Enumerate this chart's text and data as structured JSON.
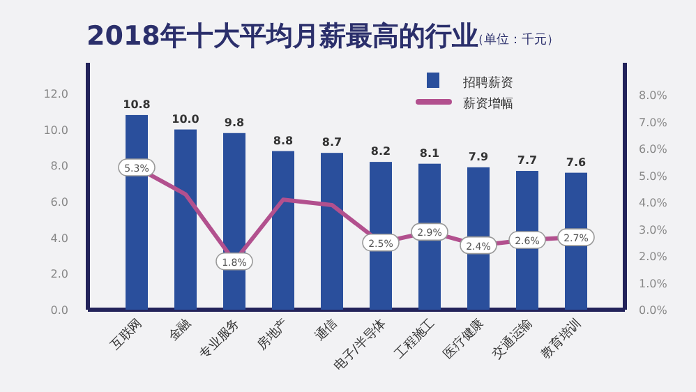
{
  "chart_data": {
    "type": "bar",
    "title": "2018年十大平均月薪最高的行业",
    "subtitle": "（单位：千元）",
    "categories": [
      "互联网",
      "金融",
      "专业服务",
      "房地产",
      "通信",
      "电子/半导体",
      "工程施工",
      "医疗健康",
      "交通运输",
      "教育培训"
    ],
    "series": [
      {
        "name": "招聘薪资",
        "color": "#2a4f9c",
        "values": [
          10.8,
          10.0,
          9.8,
          8.8,
          8.7,
          8.2,
          8.1,
          7.9,
          7.7,
          7.6
        ],
        "value_labels": [
          "10.8",
          "10.0",
          "9.8",
          "8.8",
          "8.7",
          "8.2",
          "8.1",
          "7.9",
          "7.7",
          "7.6"
        ]
      },
      {
        "name": "薪资增幅",
        "type": "line",
        "axis": "y2",
        "color": "#b2508e",
        "values": [
          5.3,
          4.3,
          1.8,
          4.1,
          3.9,
          2.5,
          2.9,
          2.4,
          2.6,
          2.7
        ],
        "value_labels": [
          "5.3%",
          null,
          "1.8%",
          null,
          null,
          "2.5%",
          "2.9%",
          "2.4%",
          "2.6%",
          "2.7%"
        ]
      }
    ],
    "ylim": [
      0,
      13.7
    ],
    "yticks": [
      {
        "value": 0,
        "label": "0.0"
      },
      {
        "value": 2,
        "label": "2.0"
      },
      {
        "value": 4,
        "label": "4.0"
      },
      {
        "value": 6,
        "label": "6.0"
      },
      {
        "value": 8,
        "label": "8.0"
      },
      {
        "value": 10,
        "label": "10.0"
      },
      {
        "value": 12,
        "label": "12.0"
      }
    ],
    "y2lim": [
      0,
      9.2
    ],
    "y2ticks": [
      {
        "value": 0,
        "label": "0.0%"
      },
      {
        "value": 1,
        "label": "1.0%"
      },
      {
        "value": 2,
        "label": "2.0%"
      },
      {
        "value": 3,
        "label": "3.0%"
      },
      {
        "value": 4,
        "label": "4.0%"
      },
      {
        "value": 5,
        "label": "5.0%"
      },
      {
        "value": 6,
        "label": "6.0%"
      },
      {
        "value": 7,
        "label": "7.0%"
      },
      {
        "value": 8,
        "label": "8.0%"
      }
    ],
    "legend": "top right",
    "grid": false
  }
}
